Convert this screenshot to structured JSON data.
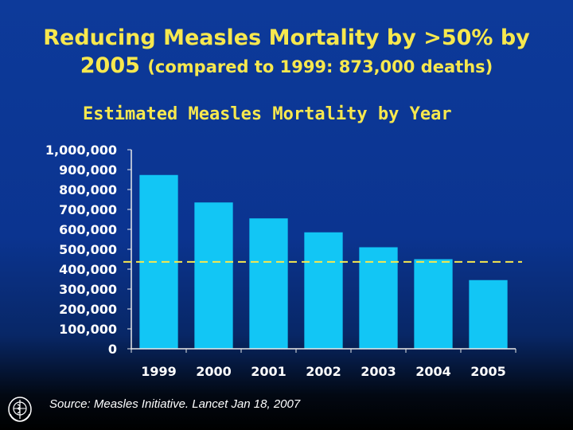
{
  "header": {
    "title_line1": "Reducing Measles Mortality by >50% by",
    "title_line2_main": "2005",
    "title_line2_sub": "(compared to 1999: 873,000 deaths)"
  },
  "footer": {
    "source": "Source:  Measles Initiative.  Lancet Jan 18, 2007"
  },
  "colors": {
    "bar": "#12c6f5",
    "target_line": "#f7e84e",
    "axis": "#e8e8e8",
    "text": "#ffffff"
  },
  "chart_data": {
    "type": "bar",
    "title": "Estimated Measles Mortality by Year",
    "xlabel": "",
    "ylabel": "",
    "categories": [
      "1999",
      "2000",
      "2001",
      "2002",
      "2003",
      "2004",
      "2005"
    ],
    "values": [
      873000,
      735000,
      655000,
      585000,
      510000,
      450000,
      345000
    ],
    "ylim": [
      0,
      1000000
    ],
    "yticks": [
      0,
      100000,
      200000,
      300000,
      400000,
      500000,
      600000,
      700000,
      800000,
      900000,
      1000000
    ],
    "ytick_labels": [
      "0",
      "100,000",
      "200,000",
      "300,000",
      "400,000",
      "500,000",
      "600,000",
      "700,000",
      "800,000",
      "900,000",
      "1,000,000"
    ],
    "target_line_value": 436500,
    "grid": false,
    "legend": "none"
  }
}
